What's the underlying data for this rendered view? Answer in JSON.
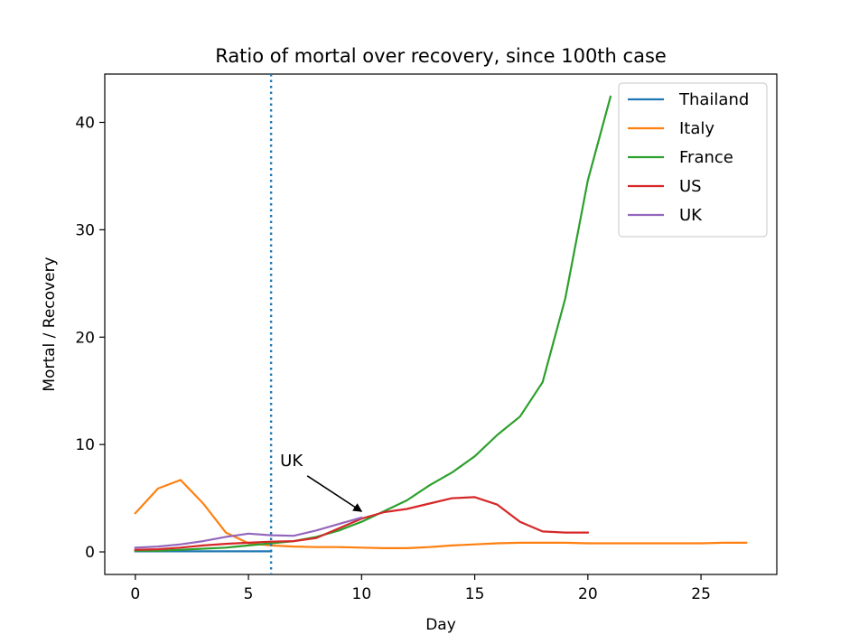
{
  "chart_data": {
    "type": "line",
    "title": "Ratio of mortal over recovery, since 100th case",
    "xlabel": "Day",
    "ylabel": "Mortal / Recovery",
    "xlim": [
      -1.35,
      28.35
    ],
    "ylim": [
      -2.1,
      44.5
    ],
    "xticks": [
      0,
      5,
      10,
      15,
      20,
      25
    ],
    "yticks": [
      0,
      10,
      20,
      30,
      40
    ],
    "grid": false,
    "legend_position": "top-right",
    "series": [
      {
        "name": "Thailand",
        "color": "#1f77b4",
        "x": [
          0,
          1,
          2,
          3,
          4,
          5,
          6
        ],
        "y": [
          0.05,
          0.05,
          0.05,
          0.05,
          0.05,
          0.05,
          0.05
        ]
      },
      {
        "name": "Italy",
        "color": "#ff7f0e",
        "x": [
          0,
          1,
          2,
          3,
          4,
          5,
          6,
          7,
          8,
          9,
          10,
          11,
          12,
          13,
          14,
          15,
          16,
          17,
          18,
          19,
          20,
          21,
          22,
          23,
          24,
          25,
          26,
          27
        ],
        "y": [
          3.6,
          5.9,
          6.7,
          4.5,
          1.8,
          0.8,
          0.6,
          0.5,
          0.45,
          0.45,
          0.4,
          0.35,
          0.35,
          0.45,
          0.6,
          0.7,
          0.8,
          0.85,
          0.85,
          0.85,
          0.8,
          0.8,
          0.8,
          0.8,
          0.8,
          0.8,
          0.85,
          0.85
        ]
      },
      {
        "name": "France",
        "color": "#2ca02c",
        "x": [
          0,
          1,
          2,
          3,
          4,
          5,
          6,
          7,
          8,
          9,
          10,
          11,
          12,
          13,
          14,
          15,
          16,
          17,
          18,
          19,
          20,
          21
        ],
        "y": [
          0.1,
          0.1,
          0.2,
          0.3,
          0.4,
          0.6,
          0.8,
          1.0,
          1.4,
          2.0,
          2.8,
          3.8,
          4.8,
          6.2,
          7.4,
          8.9,
          10.9,
          12.6,
          15.8,
          23.6,
          34.6,
          42.4
        ]
      },
      {
        "name": "US",
        "color": "#d62728",
        "x": [
          0,
          1,
          2,
          3,
          4,
          5,
          6,
          7,
          8,
          9,
          10,
          11,
          12,
          13,
          14,
          15,
          16,
          17,
          18,
          19,
          20
        ],
        "y": [
          0.2,
          0.25,
          0.4,
          0.6,
          0.75,
          0.85,
          0.95,
          1.0,
          1.3,
          2.2,
          3.1,
          3.7,
          4.0,
          4.5,
          5.0,
          5.1,
          4.4,
          2.8,
          1.9,
          1.8,
          1.8
        ]
      },
      {
        "name": "UK",
        "color": "#9467bd",
        "x": [
          0,
          1,
          2,
          3,
          4,
          5,
          6,
          7,
          8,
          9,
          10
        ],
        "y": [
          0.4,
          0.5,
          0.7,
          1.0,
          1.4,
          1.7,
          1.55,
          1.5,
          2.0,
          2.6,
          3.2
        ]
      }
    ],
    "vline": {
      "x": 6,
      "style": "dotted",
      "color": "#1f77b4"
    },
    "annotations": [
      {
        "text": "UK",
        "text_x": 7,
        "text_y": 8.6,
        "arrow_to_x": 10,
        "arrow_to_y": 3.6
      }
    ]
  }
}
